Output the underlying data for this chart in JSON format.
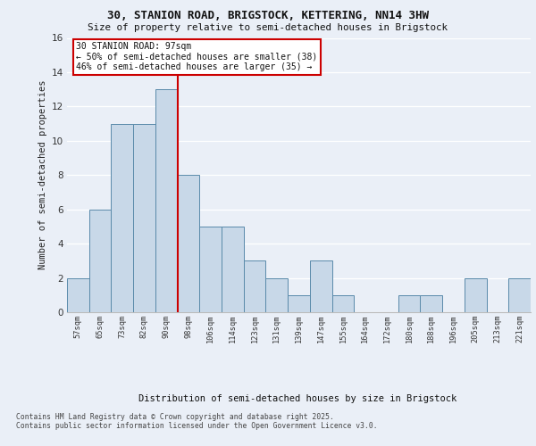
{
  "title": "30, STANION ROAD, BRIGSTOCK, KETTERING, NN14 3HW",
  "subtitle": "Size of property relative to semi-detached houses in Brigstock",
  "xlabel": "Distribution of semi-detached houses by size in Brigstock",
  "ylabel": "Number of semi-detached properties",
  "bins": [
    "57sqm",
    "65sqm",
    "73sqm",
    "82sqm",
    "90sqm",
    "98sqm",
    "106sqm",
    "114sqm",
    "123sqm",
    "131sqm",
    "139sqm",
    "147sqm",
    "155sqm",
    "164sqm",
    "172sqm",
    "180sqm",
    "188sqm",
    "196sqm",
    "205sqm",
    "213sqm",
    "221sqm"
  ],
  "values": [
    2,
    6,
    11,
    11,
    13,
    8,
    5,
    5,
    3,
    2,
    1,
    3,
    1,
    0,
    0,
    1,
    1,
    0,
    2,
    0,
    2
  ],
  "bar_color": "#c8d8e8",
  "bar_edge_color": "#5a8aaa",
  "vline_color": "#cc0000",
  "annotation_title": "30 STANION ROAD: 97sqm",
  "annotation_line1": "← 50% of semi-detached houses are smaller (38)",
  "annotation_line2": "46% of semi-detached houses are larger (35) →",
  "annotation_box_color": "#ffffff",
  "annotation_box_edge": "#cc0000",
  "footer": "Contains HM Land Registry data © Crown copyright and database right 2025.\nContains public sector information licensed under the Open Government Licence v3.0.",
  "ylim": [
    0,
    16
  ],
  "yticks": [
    0,
    2,
    4,
    6,
    8,
    10,
    12,
    14,
    16
  ],
  "background_color": "#eaeff7",
  "plot_bg_color": "#eaeff7",
  "grid_color": "#ffffff"
}
